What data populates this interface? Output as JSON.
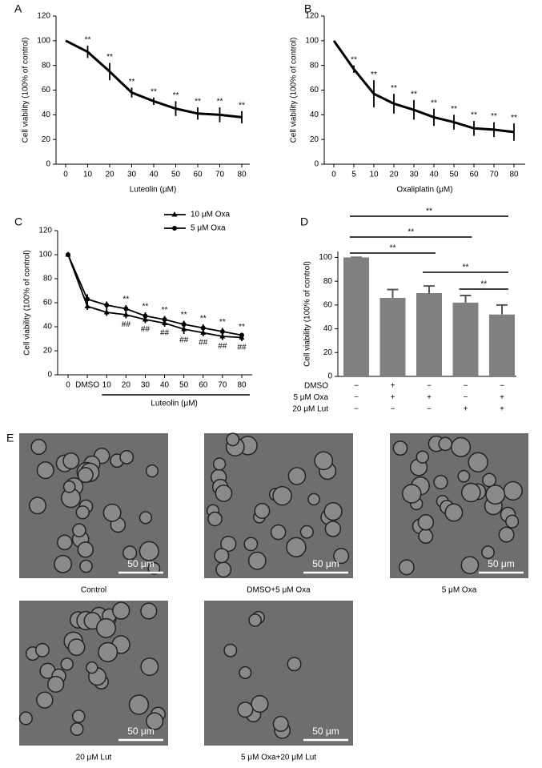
{
  "chart_data": [
    {
      "panel": "A",
      "type": "line",
      "y_label": "Cell viability (100% of control)",
      "x_label": "Luteolin (μM)",
      "categories": [
        "0",
        "10",
        "20",
        "30",
        "40",
        "50",
        "60",
        "70",
        "80"
      ],
      "values": [
        100,
        91,
        75,
        58,
        51,
        45,
        41,
        40,
        38
      ],
      "errors": [
        0,
        5,
        7,
        4,
        3,
        6,
        5,
        6,
        5
      ],
      "color": "#000000",
      "annotations_above": [
        null,
        "**",
        "**",
        "**",
        "**",
        "**",
        "**",
        "**",
        "**"
      ],
      "ylim": [
        0,
        120
      ],
      "yticks": [
        0,
        20,
        40,
        60,
        80,
        100,
        120
      ]
    },
    {
      "panel": "B",
      "type": "line",
      "y_label": "Cell viability (100% of control)",
      "x_label": "Oxaliplatin (μM)",
      "categories": [
        "0",
        "5",
        "10",
        "20",
        "30",
        "40",
        "50",
        "60",
        "70",
        "80"
      ],
      "values": [
        100,
        77,
        57,
        49,
        44,
        38,
        34,
        29,
        28,
        26
      ],
      "errors": [
        0,
        3,
        11,
        8,
        8,
        7,
        6,
        6,
        6,
        7
      ],
      "color": "#000000",
      "annotations_above": [
        null,
        "**",
        "**",
        "**",
        "**",
        "**",
        "**",
        "**",
        "**",
        "**"
      ],
      "ylim": [
        0,
        120
      ],
      "yticks": [
        0,
        20,
        40,
        60,
        80,
        100,
        120
      ]
    },
    {
      "panel": "C",
      "type": "line",
      "y_label": "Cell viability (100% of control)",
      "x_label": "Luteolin (μM)",
      "categories": [
        "0",
        "DMSO",
        "10",
        "20",
        "30",
        "40",
        "50",
        "60",
        "70",
        "80"
      ],
      "series": [
        {
          "name": "10 μM Oxa",
          "marker": "triangle",
          "color": "#000000",
          "values": [
            100,
            57,
            52,
            50,
            46,
            43,
            38,
            35,
            32,
            31
          ],
          "errors": [
            0,
            3,
            3,
            3,
            3,
            3,
            4,
            3,
            3,
            3
          ]
        },
        {
          "name": "5 μM Oxa",
          "marker": "circle",
          "color": "#000000",
          "values": [
            100,
            63,
            58,
            55,
            49,
            46,
            42,
            39,
            36,
            33
          ],
          "errors": [
            0,
            4,
            3,
            3,
            3,
            3,
            3,
            3,
            3,
            2
          ]
        }
      ],
      "annotations_above": [
        null,
        null,
        null,
        "**",
        "**",
        "**",
        "**",
        "**",
        "**",
        "**"
      ],
      "annotations_below": [
        null,
        null,
        null,
        "##",
        "##",
        "##",
        "##",
        "##",
        "##",
        "##"
      ],
      "ylim": [
        0,
        120
      ],
      "yticks": [
        0,
        20,
        40,
        60,
        80,
        100,
        120
      ]
    },
    {
      "panel": "D",
      "type": "bar",
      "y_label": "Cell viability (100% of control)",
      "values": [
        100,
        66,
        70,
        62,
        52
      ],
      "errors": [
        0,
        7,
        6,
        6,
        8
      ],
      "color": "#808080",
      "treatments": [
        {
          "name": "DMSO",
          "signs": [
            "−",
            "+",
            "−",
            "−",
            "−"
          ]
        },
        {
          "name": "5 μM Oxa",
          "signs": [
            "−",
            "+",
            "+",
            "−",
            "+"
          ]
        },
        {
          "name": "20 μM Lut",
          "signs": [
            "−",
            "−",
            "−",
            "+",
            "+"
          ]
        }
      ],
      "comparisons": [
        {
          "from": 0,
          "to": 4,
          "label": "**"
        },
        {
          "from": 0,
          "to": 3,
          "label": "**"
        },
        {
          "from": 0,
          "to": 2,
          "label": "**"
        },
        {
          "from": 2,
          "to": 4,
          "label": "**"
        },
        {
          "from": 3,
          "to": 4,
          "label": "**"
        }
      ],
      "ylim": [
        0,
        105
      ],
      "yticks": [
        0,
        20,
        40,
        60,
        80,
        100
      ]
    }
  ],
  "micrographs": {
    "panel": "E",
    "images": [
      {
        "caption": "Control",
        "scale_bar": "50 μm"
      },
      {
        "caption": "DMSO+5 μM Oxa",
        "scale_bar": "50 μm"
      },
      {
        "caption": "5 μM Oxa",
        "scale_bar": "50 μm"
      },
      {
        "caption": "20 μM Lut",
        "scale_bar": "50 μm"
      },
      {
        "caption": "5 μM Oxa+20 μM Lut",
        "scale_bar": "50 μm"
      }
    ]
  }
}
